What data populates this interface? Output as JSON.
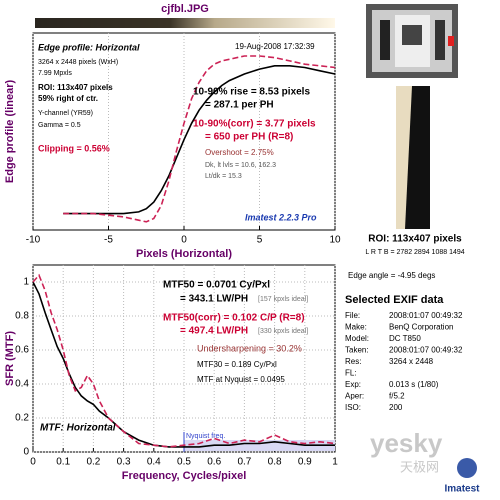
{
  "header": {
    "title": "cjfbl.JPG"
  },
  "chart_data": [
    {
      "type": "line",
      "xlabel": "Pixels (Horizontal)",
      "ylabel": "Edge profile (linear)",
      "x": [
        -8,
        -7,
        -6,
        -5,
        -4,
        -3,
        -2.5,
        -2,
        -1.5,
        -1,
        -0.5,
        0,
        0.5,
        1,
        1.5,
        2,
        2.5,
        3,
        4,
        5,
        6,
        7,
        8,
        9,
        10
      ],
      "series": [
        {
          "color": "#000000",
          "style": "solid",
          "values": [
            0.1,
            0.1,
            0.1,
            0.1,
            0.1,
            0.11,
            0.13,
            0.17,
            0.24,
            0.33,
            0.44,
            0.55,
            0.65,
            0.73,
            0.79,
            0.84,
            0.88,
            0.91,
            0.95,
            0.98,
            1.0,
            1.0,
            0.99,
            0.97,
            0.95
          ]
        },
        {
          "color": "#cc2255",
          "style": "dashed",
          "values": [
            0.1,
            0.1,
            0.1,
            0.09,
            0.08,
            0.06,
            0.05,
            0.07,
            0.15,
            0.3,
            0.48,
            0.65,
            0.8,
            0.9,
            0.97,
            1.01,
            1.03,
            1.04,
            1.06,
            1.06,
            1.05,
            1.03,
            1.01,
            1.0,
            0.99
          ]
        }
      ],
      "xlim": [
        -10,
        10
      ],
      "xticks": [
        -10,
        -5,
        0,
        5,
        10
      ],
      "ylim": [
        0,
        1.2
      ],
      "grid": true,
      "annotations": [
        "Edge profile: Horizontal",
        "19-Aug-2008 17:32:39",
        "3264 x 2448 pixels (WxH)",
        "7.99 Mpxls",
        "ROI: 113x407 pixels",
        "59% right of ctr.",
        "Y-channel (YR59)",
        "Gamma = 0.5",
        "Clipping = 0.56%",
        "10-90% rise = 8.53 pixels",
        "= 287.1 per PH",
        "10-90%(corr) = 3.77 pixels",
        "= 650 per PH (R=8)",
        "Overshoot = 2.75%",
        "Dk, lt lvls = 10.6, 162.3",
        "Lt/dk = 15.3",
        "Imatest 2.2.3 Pro"
      ]
    },
    {
      "type": "line",
      "xlabel": "Frequency, Cycles/pixel",
      "ylabel": "SFR (MTF)",
      "x": [
        0,
        0.02,
        0.04,
        0.06,
        0.08,
        0.1,
        0.12,
        0.14,
        0.16,
        0.18,
        0.2,
        0.22,
        0.25,
        0.3,
        0.35,
        0.4,
        0.45,
        0.5,
        0.55,
        0.6,
        0.65,
        0.7,
        0.75,
        0.8,
        0.85,
        0.9,
        0.95,
        1
      ],
      "series": [
        {
          "color": "#000000",
          "style": "solid",
          "values": [
            1.0,
            0.93,
            0.82,
            0.72,
            0.62,
            0.55,
            0.46,
            0.38,
            0.33,
            0.3,
            0.28,
            0.24,
            0.2,
            0.12,
            0.07,
            0.04,
            0.03,
            0.03,
            0.03,
            0.04,
            0.04,
            0.05,
            0.05,
            0.06,
            0.05,
            0.04,
            0.04,
            0.04
          ]
        },
        {
          "color": "#cc2255",
          "style": "dashed",
          "values": [
            1.0,
            1.04,
            0.95,
            0.82,
            0.72,
            0.6,
            0.45,
            0.36,
            0.38,
            0.45,
            0.4,
            0.3,
            0.2,
            0.12,
            0.05,
            0.04,
            0.03,
            0.04,
            0.05,
            0.08,
            0.05,
            0.07,
            0.06,
            0.1,
            0.06,
            0.05,
            0.06,
            0.05
          ]
        }
      ],
      "xlim": [
        0,
        1
      ],
      "xticks": [
        0,
        0.1,
        0.2,
        0.3,
        0.4,
        0.5,
        0.6,
        0.7,
        0.8,
        0.9,
        1
      ],
      "ylim": [
        0,
        1.1
      ],
      "yticks": [
        0,
        0.2,
        0.4,
        0.6,
        0.8,
        1
      ],
      "grid": true,
      "nyquist": 0.5,
      "nyquist_label": "Nyquist freq.",
      "annotations": [
        "MTF50 = 0.0701 Cy/Pxl",
        "= 343.1 LW/PH",
        "[157 kpxls ideal]",
        "MTF50(corr) = 0.102 C/P (R=8)",
        "= 497.4 LW/PH",
        "[330 kpxls ideal]",
        "Undersharpening = 30.2%",
        "MTF30 = 0.189 Cy/Pxl",
        "MTF at Nyquist = 0.0495",
        "MTF: Horizontal"
      ]
    }
  ],
  "roi_panel": {
    "roi": "ROI: 113x407 pixels",
    "lrtb": "L R T B = 2782 2894 1088 1494",
    "edge_angle": "Edge angle = -4.95 degs"
  },
  "exif": {
    "title": "Selected EXIF data",
    "rows": [
      [
        "File:",
        "2008:01:07 00:49:32"
      ],
      [
        "Make:",
        "BenQ Corporation"
      ],
      [
        "Model:",
        "DC T850"
      ],
      [
        "Taken:",
        "2008:01:07 00:49:32"
      ],
      [
        "Res:",
        "3264 x 2448"
      ],
      [
        "FL:"
      ],
      [
        "Exp:",
        "0.013 s  (1/80)"
      ],
      [
        "Aper:",
        "f/5.2"
      ],
      [
        "ISO:",
        "200"
      ]
    ]
  },
  "watermark": {
    "site": "yesky",
    "cn": "天极网",
    "logo": "Imatest"
  }
}
